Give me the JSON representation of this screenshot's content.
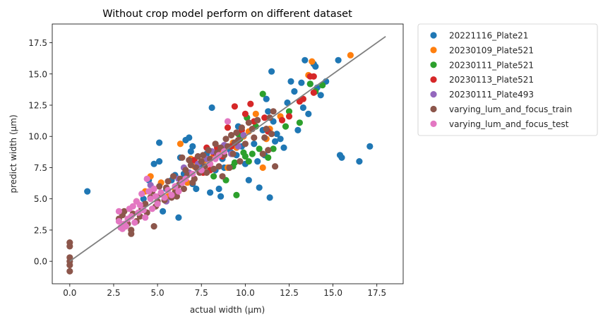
{
  "chart_data": {
    "type": "scatter",
    "title": "Without crop model perform on different dataset",
    "xlabel": "actual width (μm)",
    "ylabel": "predict width (μm)",
    "xlim": [
      -1.0,
      19.0
    ],
    "ylim": [
      -1.8,
      19.0
    ],
    "xticks": [
      0.0,
      2.5,
      5.0,
      7.5,
      10.0,
      12.5,
      15.0,
      17.5
    ],
    "xtick_labels": [
      "0.0",
      "2.5",
      "5.0",
      "7.5",
      "10.0",
      "12.5",
      "15.0",
      "17.5"
    ],
    "yticks": [
      0.0,
      2.5,
      5.0,
      7.5,
      10.0,
      12.5,
      15.0,
      17.5
    ],
    "ytick_labels": [
      "0.0",
      "2.5",
      "5.0",
      "7.5",
      "10.0",
      "12.5",
      "15.0",
      "17.5"
    ],
    "grid": false,
    "legend_position": "outside-top-right",
    "reference_line": {
      "x": [
        0,
        18
      ],
      "y": [
        0,
        18
      ],
      "color": "#808080"
    },
    "series": [
      {
        "name": "20221116_Plate21",
        "color": "#1f77b4",
        "points": [
          [
            1.0,
            5.6
          ],
          [
            4.2,
            5.0
          ],
          [
            4.5,
            6.5
          ],
          [
            4.8,
            7.8
          ],
          [
            5.1,
            8.0
          ],
          [
            5.1,
            9.5
          ],
          [
            5.3,
            4.0
          ],
          [
            5.5,
            5.8
          ],
          [
            5.8,
            6.5
          ],
          [
            6.0,
            6.9
          ],
          [
            6.2,
            3.5
          ],
          [
            6.3,
            8.3
          ],
          [
            6.5,
            7.0
          ],
          [
            6.6,
            9.7
          ],
          [
            6.8,
            9.9
          ],
          [
            6.9,
            8.8
          ],
          [
            7.0,
            6.2
          ],
          [
            7.0,
            9.2
          ],
          [
            7.2,
            5.8
          ],
          [
            7.5,
            7.5
          ],
          [
            7.8,
            8.6
          ],
          [
            8.0,
            5.5
          ],
          [
            8.1,
            12.3
          ],
          [
            8.3,
            7.3
          ],
          [
            8.5,
            5.8
          ],
          [
            8.6,
            5.2
          ],
          [
            8.7,
            8.2
          ],
          [
            8.8,
            7.5
          ],
          [
            9.0,
            9.0
          ],
          [
            9.2,
            8.7
          ],
          [
            9.5,
            8.5
          ],
          [
            9.6,
            10.8
          ],
          [
            9.8,
            9.2
          ],
          [
            10.0,
            7.8
          ],
          [
            10.2,
            6.5
          ],
          [
            10.5,
            9.4
          ],
          [
            10.7,
            8.0
          ],
          [
            10.8,
            5.9
          ],
          [
            11.0,
            10.5
          ],
          [
            11.1,
            8.5
          ],
          [
            11.2,
            13.0
          ],
          [
            11.3,
            12.0
          ],
          [
            11.4,
            5.1
          ],
          [
            11.5,
            15.2
          ],
          [
            11.6,
            11.2
          ],
          [
            11.7,
            9.6
          ],
          [
            11.8,
            10.2
          ],
          [
            12.0,
            9.8
          ],
          [
            12.2,
            9.1
          ],
          [
            12.4,
            12.7
          ],
          [
            12.6,
            14.4
          ],
          [
            12.8,
            13.6
          ],
          [
            13.0,
            10.5
          ],
          [
            13.2,
            14.3
          ],
          [
            13.3,
            12.3
          ],
          [
            13.4,
            16.1
          ],
          [
            13.6,
            11.8
          ],
          [
            13.7,
            14.2
          ],
          [
            13.9,
            15.8
          ],
          [
            14.0,
            15.6
          ],
          [
            14.1,
            13.9
          ],
          [
            14.3,
            13.3
          ],
          [
            14.6,
            14.4
          ],
          [
            15.3,
            16.1
          ],
          [
            15.4,
            8.5
          ],
          [
            15.5,
            8.3
          ],
          [
            16.5,
            8.0
          ],
          [
            17.1,
            9.2
          ]
        ]
      },
      {
        "name": "20230109_Plate521",
        "color": "#ff7f0e",
        "points": [
          [
            3.8,
            4.8
          ],
          [
            4.3,
            5.6
          ],
          [
            4.6,
            6.8
          ],
          [
            5.2,
            6.3
          ],
          [
            5.6,
            5.2
          ],
          [
            6.0,
            5.8
          ],
          [
            6.3,
            9.4
          ],
          [
            6.7,
            6.3
          ],
          [
            6.9,
            8.2
          ],
          [
            7.1,
            7.6
          ],
          [
            7.4,
            7.2
          ],
          [
            7.7,
            8.1
          ],
          [
            8.0,
            7.8
          ],
          [
            8.2,
            8.5
          ],
          [
            8.5,
            8.9
          ],
          [
            8.8,
            9.0
          ],
          [
            9.0,
            7.5
          ],
          [
            9.3,
            9.5
          ],
          [
            9.5,
            9.1
          ],
          [
            9.9,
            10.0
          ],
          [
            10.2,
            10.4
          ],
          [
            10.6,
            11.8
          ],
          [
            11.0,
            7.5
          ],
          [
            11.2,
            9.8
          ],
          [
            11.4,
            10.6
          ],
          [
            12.0,
            11.6
          ],
          [
            13.6,
            14.9
          ],
          [
            13.8,
            16.0
          ],
          [
            16.0,
            16.5
          ]
        ]
      },
      {
        "name": "20230111_Plate521",
        "color": "#2ca02c",
        "points": [
          [
            7.5,
            7.2
          ],
          [
            8.2,
            6.8
          ],
          [
            8.9,
            6.5
          ],
          [
            9.3,
            7.6
          ],
          [
            9.4,
            7.9
          ],
          [
            9.5,
            5.3
          ],
          [
            9.6,
            10.2
          ],
          [
            9.7,
            9.8
          ],
          [
            9.9,
            8.7
          ],
          [
            10.0,
            8.4
          ],
          [
            10.1,
            11.5
          ],
          [
            10.2,
            8.0
          ],
          [
            10.4,
            8.6
          ],
          [
            10.6,
            10.8
          ],
          [
            10.8,
            9.0
          ],
          [
            11.0,
            13.4
          ],
          [
            11.3,
            8.3
          ],
          [
            11.6,
            9.0
          ],
          [
            12.3,
            10.8
          ],
          [
            12.5,
            12.0
          ],
          [
            13.1,
            11.1
          ],
          [
            13.7,
            14.2
          ],
          [
            14.0,
            13.6
          ],
          [
            14.4,
            14.1
          ]
        ]
      },
      {
        "name": "20230113_Plate521",
        "color": "#d62728",
        "points": [
          [
            7.1,
            8.1
          ],
          [
            7.6,
            7.1
          ],
          [
            7.8,
            9.1
          ],
          [
            8.0,
            7.3
          ],
          [
            8.2,
            8.7
          ],
          [
            8.4,
            9.1
          ],
          [
            8.7,
            8.4
          ],
          [
            9.0,
            10.7
          ],
          [
            9.2,
            9.2
          ],
          [
            9.4,
            12.4
          ],
          [
            9.8,
            10.5
          ],
          [
            10.0,
            11.8
          ],
          [
            10.3,
            12.6
          ],
          [
            10.5,
            11.2
          ],
          [
            11.1,
            11.5
          ],
          [
            11.3,
            10.4
          ],
          [
            12.1,
            11.3
          ],
          [
            12.5,
            11.6
          ],
          [
            13.1,
            12.8
          ],
          [
            13.3,
            13.0
          ],
          [
            13.7,
            14.8
          ],
          [
            13.9,
            14.8
          ],
          [
            13.9,
            13.5
          ]
        ]
      },
      {
        "name": "20230111_Plate493",
        "color": "#9467bd",
        "points": [
          [
            4.6,
            6.1
          ],
          [
            5.5,
            4.8
          ],
          [
            6.0,
            5.5
          ],
          [
            6.2,
            6.6
          ],
          [
            6.5,
            7.5
          ],
          [
            6.8,
            7.1
          ],
          [
            7.3,
            7.8
          ],
          [
            7.8,
            8.2
          ],
          [
            8.1,
            8.8
          ],
          [
            8.4,
            8.6
          ],
          [
            8.8,
            9.3
          ],
          [
            9.2,
            8.6
          ],
          [
            9.6,
            9.2
          ],
          [
            9.9,
            10.1
          ]
        ]
      },
      {
        "name": "varying_lum_and_focus_train",
        "color": "#8c564b",
        "points": [
          [
            0.0,
            1.5
          ],
          [
            0.0,
            1.2
          ],
          [
            0.0,
            0.3
          ],
          [
            0.0,
            0.0
          ],
          [
            0.0,
            -0.3
          ],
          [
            0.0,
            -0.8
          ],
          [
            2.8,
            3.4
          ],
          [
            3.0,
            3.7
          ],
          [
            3.1,
            4.0
          ],
          [
            3.3,
            3.0
          ],
          [
            3.5,
            2.5
          ],
          [
            3.5,
            2.2
          ],
          [
            3.6,
            3.8
          ],
          [
            3.8,
            3.2
          ],
          [
            4.0,
            3.6
          ],
          [
            4.1,
            4.2
          ],
          [
            4.3,
            4.6
          ],
          [
            4.4,
            3.9
          ],
          [
            4.6,
            5.1
          ],
          [
            4.7,
            5.6
          ],
          [
            4.8,
            2.8
          ],
          [
            4.9,
            4.4
          ],
          [
            5.0,
            4.8
          ],
          [
            5.1,
            6.0
          ],
          [
            5.2,
            5.4
          ],
          [
            5.4,
            4.9
          ],
          [
            5.5,
            5.9
          ],
          [
            5.6,
            6.4
          ],
          [
            5.8,
            5.1
          ],
          [
            5.9,
            6.8
          ],
          [
            6.0,
            5.5
          ],
          [
            6.1,
            5.2
          ],
          [
            6.2,
            6.1
          ],
          [
            6.3,
            6.6
          ],
          [
            6.4,
            8.3
          ],
          [
            6.5,
            5.8
          ],
          [
            6.6,
            7.3
          ],
          [
            6.7,
            6.9
          ],
          [
            6.8,
            8.1
          ],
          [
            6.9,
            7.7
          ],
          [
            7.0,
            6.3
          ],
          [
            7.1,
            6.6
          ],
          [
            7.2,
            7.5
          ],
          [
            7.3,
            8.4
          ],
          [
            7.4,
            7.1
          ],
          [
            7.5,
            8.0
          ],
          [
            7.6,
            8.5
          ],
          [
            7.7,
            7.6
          ],
          [
            7.8,
            7.1
          ],
          [
            7.9,
            8.9
          ],
          [
            8.0,
            8.2
          ],
          [
            8.2,
            7.4
          ],
          [
            8.3,
            9.4
          ],
          [
            8.4,
            8.7
          ],
          [
            8.5,
            7.6
          ],
          [
            8.6,
            9.1
          ],
          [
            8.7,
            6.8
          ],
          [
            8.8,
            8.5
          ],
          [
            8.9,
            9.8
          ],
          [
            9.0,
            9.2
          ],
          [
            9.1,
            7.5
          ],
          [
            9.2,
            10.1
          ],
          [
            9.3,
            8.6
          ],
          [
            9.4,
            9.5
          ],
          [
            9.5,
            10.3
          ],
          [
            9.6,
            9.7
          ],
          [
            9.7,
            8.0
          ],
          [
            9.8,
            10.7
          ],
          [
            10.0,
            9.4
          ],
          [
            10.2,
            11.1
          ],
          [
            10.4,
            10.6
          ],
          [
            10.5,
            9.9
          ],
          [
            10.7,
            11.3
          ],
          [
            11.0,
            8.6
          ],
          [
            11.1,
            9.9
          ],
          [
            11.2,
            10.6
          ],
          [
            11.3,
            8.9
          ],
          [
            11.4,
            11.5
          ],
          [
            11.5,
            10.2
          ],
          [
            11.6,
            12.0
          ],
          [
            11.7,
            7.6
          ]
        ]
      },
      {
        "name": "varying_lum_and_focus_test",
        "color": "#e377c2",
        "points": [
          [
            2.8,
            4.0
          ],
          [
            2.8,
            3.2
          ],
          [
            2.9,
            2.7
          ],
          [
            3.0,
            2.6
          ],
          [
            3.1,
            3.0
          ],
          [
            3.2,
            2.8
          ],
          [
            3.3,
            3.4
          ],
          [
            3.4,
            4.2
          ],
          [
            3.5,
            3.6
          ],
          [
            3.6,
            4.4
          ],
          [
            3.7,
            3.1
          ],
          [
            3.8,
            4.8
          ],
          [
            3.9,
            3.9
          ],
          [
            4.0,
            4.5
          ],
          [
            4.1,
            5.4
          ],
          [
            4.2,
            4.1
          ],
          [
            4.3,
            3.5
          ],
          [
            4.4,
            6.6
          ],
          [
            4.5,
            5.6
          ],
          [
            4.6,
            5.0
          ],
          [
            4.7,
            4.2
          ],
          [
            4.8,
            5.8
          ],
          [
            4.9,
            5.2
          ],
          [
            5.0,
            4.6
          ],
          [
            5.2,
            5.5
          ],
          [
            5.4,
            5.1
          ],
          [
            5.6,
            5.7
          ],
          [
            5.8,
            5.3
          ],
          [
            6.0,
            6.0
          ],
          [
            6.2,
            5.6
          ],
          [
            6.4,
            6.3
          ],
          [
            6.6,
            6.6
          ],
          [
            7.0,
            7.0
          ],
          [
            7.5,
            7.3
          ],
          [
            8.0,
            7.8
          ],
          [
            8.3,
            8.2
          ],
          [
            8.5,
            8.5
          ],
          [
            8.8,
            8.8
          ],
          [
            9.0,
            11.2
          ]
        ]
      }
    ]
  }
}
